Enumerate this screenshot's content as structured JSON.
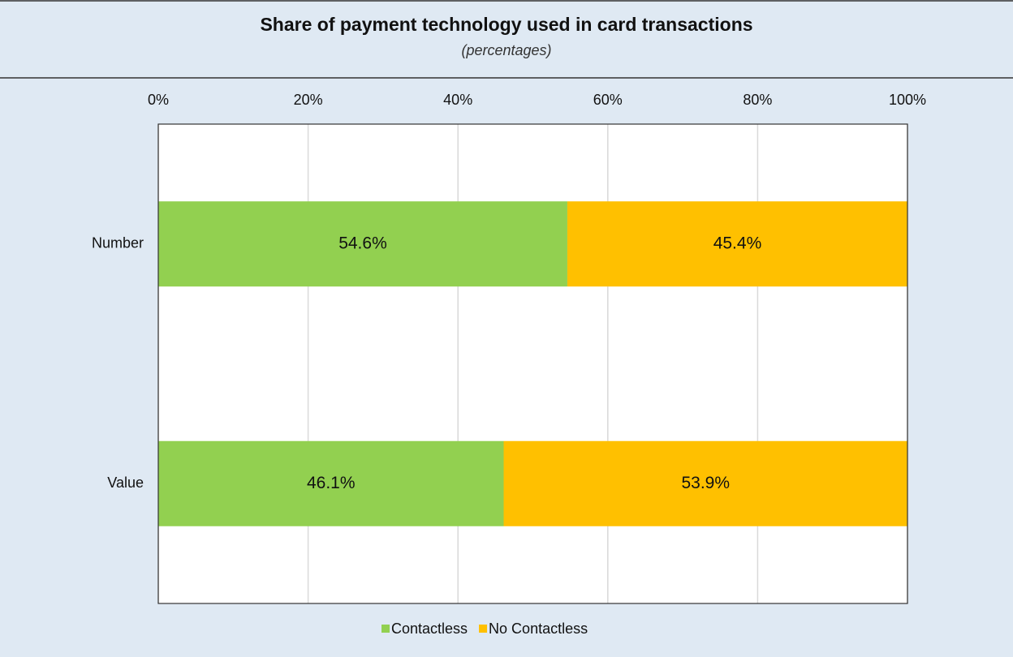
{
  "chart_data": {
    "type": "stacked_barh",
    "title": "Share of payment technology used in card transactions",
    "subtitle": "(percentages)",
    "categories": [
      "Number",
      "Value"
    ],
    "series": [
      {
        "name": "Contactless",
        "color": "#92d050",
        "values": [
          54.6,
          46.1
        ],
        "value_labels": [
          "54.6%",
          "46.1%"
        ]
      },
      {
        "name": "No Contactless",
        "color": "#ffc000",
        "values": [
          45.4,
          53.9
        ],
        "value_labels": [
          "45.4%",
          "53.9%"
        ]
      }
    ],
    "xlim": [
      0,
      100
    ],
    "xticks": [
      {
        "value": 0,
        "label": "0%"
      },
      {
        "value": 20,
        "label": "20%"
      },
      {
        "value": 40,
        "label": "40%"
      },
      {
        "value": 60,
        "label": "60%"
      },
      {
        "value": 80,
        "label": "80%"
      },
      {
        "value": 100,
        "label": "100%"
      }
    ],
    "grid": true,
    "legend": "bottom"
  }
}
